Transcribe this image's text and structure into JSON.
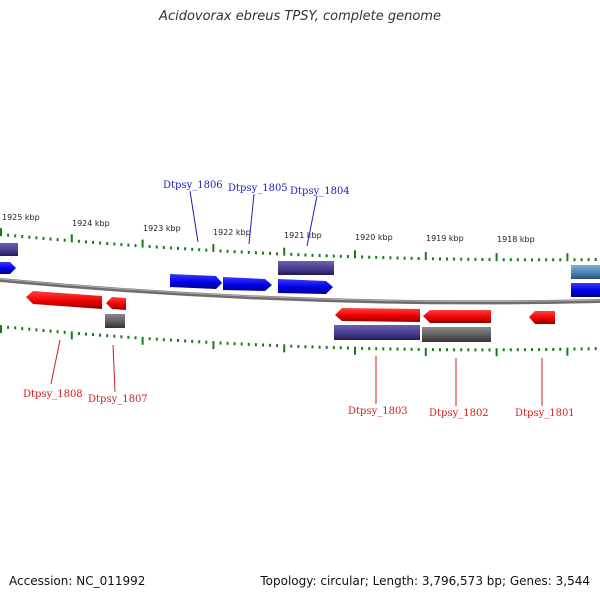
{
  "title": "Acidovorax ebreus TPSY, complete genome",
  "footer": {
    "accession": "Accession: NC_011992",
    "summary": "Topology: circular; Length: 3,796,573 bp; Genes: 3,544"
  },
  "kbp_labels": [
    {
      "text": "1925 kbp"
    },
    {
      "text": "1924 kbp"
    },
    {
      "text": "1923 kbp"
    },
    {
      "text": "1922 kbp"
    },
    {
      "text": "1921 kbp"
    },
    {
      "text": "1920 kbp"
    },
    {
      "text": "1919 kbp"
    },
    {
      "text": "1918 kbp"
    }
  ],
  "genes": [
    {
      "name": "Dtpsy_1806",
      "strand": "forward",
      "color": "#1c1cc8"
    },
    {
      "name": "Dtpsy_1805",
      "strand": "forward",
      "color": "#1c1cc8"
    },
    {
      "name": "Dtpsy_1804",
      "strand": "forward",
      "color": "#1c1cc8"
    },
    {
      "name": "Dtpsy_1808",
      "strand": "reverse",
      "color": "#d21c1c"
    },
    {
      "name": "Dtpsy_1807",
      "strand": "reverse",
      "color": "#d21c1c"
    },
    {
      "name": "Dtpsy_1803",
      "strand": "reverse",
      "color": "#d21c1c"
    },
    {
      "name": "Dtpsy_1802",
      "strand": "reverse",
      "color": "#d21c1c"
    },
    {
      "name": "Dtpsy_1801",
      "strand": "reverse",
      "color": "#d21c1c"
    }
  ],
  "colors": {
    "forward_gene": "#0000ff",
    "reverse_gene": "#ff0000",
    "domain_purple": "#4a3f8f",
    "domain_gray": "#5a5a5a",
    "domain_steelblue": "#4a7fb0",
    "tick_green": "#1a7a1a",
    "backbone": "#808080"
  }
}
